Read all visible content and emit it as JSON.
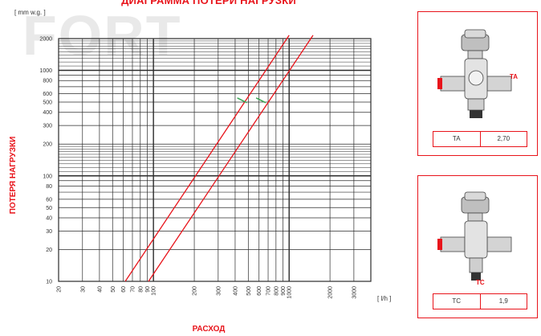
{
  "title": "ДИАГРАММА ПОТЕРИ НАГРУЗКИ",
  "watermark": "FORT",
  "chart_data": {
    "type": "line",
    "y_unit_label": "[ mm w.g. ]",
    "x_unit_label": "[ l/h ]",
    "ylabel": "ПОТЕРЯ НАГРУЗКИ",
    "xlabel": "РАСХОД",
    "x_scale": "log",
    "y_scale": "log",
    "xlim": [
      20,
      4000
    ],
    "ylim": [
      10,
      2000
    ],
    "grid": true,
    "x_ticks": [
      "20",
      "30",
      "40",
      "50",
      "60",
      "70",
      "80",
      "90",
      "100",
      "200",
      "300",
      "400",
      "500",
      "600",
      "700",
      "800",
      "900",
      "1000",
      "2000",
      "3000"
    ],
    "y_ticks": [
      "10",
      "20",
      "30",
      "40",
      "50",
      "60",
      "80",
      "100",
      "200",
      "300",
      "400",
      "500",
      "600",
      "800",
      "1000",
      "2000"
    ],
    "series": [
      {
        "name": "TA",
        "x": [
          62,
          1000
        ],
        "y": [
          10,
          2150
        ]
      },
      {
        "name": "TC",
        "x": [
          92,
          1500
        ],
        "y": [
          10,
          2150
        ]
      }
    ],
    "markers": [
      {
        "x": 450,
        "y": 520,
        "color": "#3aa655"
      },
      {
        "x": 620,
        "y": 520,
        "color": "#3aa655"
      }
    ]
  },
  "valves": [
    {
      "code": "TA",
      "kv": "2,70",
      "callout": "TA"
    },
    {
      "code": "TC",
      "kv": "1,9",
      "callout": "TC"
    }
  ],
  "colors": {
    "accent": "#e8141b",
    "grid": "#2b2b2b",
    "marker": "#3aa655"
  }
}
